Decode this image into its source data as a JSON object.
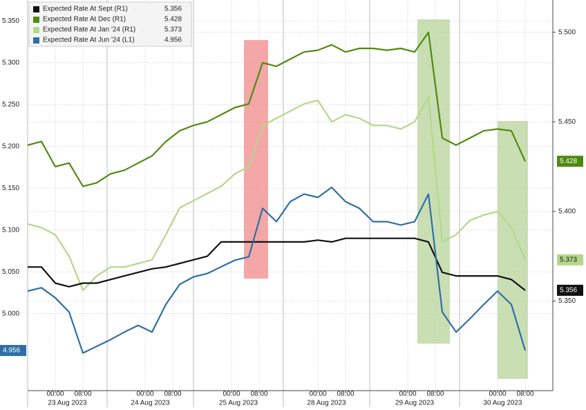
{
  "chart_data": {
    "type": "line",
    "x": [
      0,
      4,
      8,
      12,
      16,
      20,
      24,
      28,
      32,
      36,
      40,
      44,
      48,
      52,
      56,
      60,
      64,
      68,
      72,
      76,
      80,
      84,
      88,
      92,
      96,
      100,
      104,
      108,
      112,
      116,
      120,
      124,
      128,
      132,
      136,
      140,
      144
    ],
    "xlim": [
      0,
      152
    ],
    "xticks": [
      {
        "value": 8,
        "label": "00:00"
      },
      {
        "value": 16,
        "label": "08:00"
      },
      {
        "value": 34,
        "label": "00:00"
      },
      {
        "value": 42,
        "label": "08:00"
      },
      {
        "value": 59,
        "label": "00:00"
      },
      {
        "value": 67,
        "label": "08:00"
      },
      {
        "value": 84,
        "label": "00:00"
      },
      {
        "value": 92,
        "label": "08:00"
      },
      {
        "value": 110,
        "label": "00:00"
      },
      {
        "value": 118,
        "label": "08:00"
      },
      {
        "value": 136,
        "label": "00:00"
      },
      {
        "value": 144,
        "label": "08:00"
      }
    ],
    "x_groups": [
      {
        "label": "23 Aug 2023",
        "start": 0,
        "end": 23
      },
      {
        "label": "24 Aug 2023",
        "start": 23,
        "end": 48
      },
      {
        "label": "25 Aug 2023",
        "start": 48,
        "end": 74
      },
      {
        "label": "28 Aug 2023",
        "start": 74,
        "end": 99
      },
      {
        "label": "29 Aug 2023",
        "start": 99,
        "end": 125
      },
      {
        "label": "30 Aug 2023",
        "start": 125,
        "end": 150
      }
    ],
    "ylim": [
      4.908,
      5.375
    ],
    "yticks": [
      {
        "value": 5.35,
        "label": "5.350"
      },
      {
        "value": 5.3,
        "label": "5.300"
      },
      {
        "value": 5.25,
        "label": "5.250"
      },
      {
        "value": 5.2,
        "label": "5.200"
      },
      {
        "value": 5.15,
        "label": "5.150"
      },
      {
        "value": 5.1,
        "label": "5.100"
      },
      {
        "value": 5.05,
        "label": "5.050"
      },
      {
        "value": 5,
        "label": "5.000"
      }
    ],
    "y2lim": [
      5.3,
      5.518
    ],
    "y2ticks": [
      {
        "value": 5.5,
        "label": "5.500"
      },
      {
        "value": 5.45,
        "label": "5.450"
      },
      {
        "value": 5.4,
        "label": "5.400"
      },
      {
        "value": 5.35,
        "label": "5.350"
      }
    ],
    "grid": true,
    "series": [
      {
        "name": "Expected Rate At Sept (R1)",
        "color": "#111111",
        "axis": "y2",
        "values": [
          5.369,
          5.369,
          5.36,
          5.358,
          5.36,
          5.36,
          5.362,
          5.364,
          5.366,
          5.368,
          5.369,
          5.371,
          5.373,
          5.375,
          5.383,
          5.383,
          5.383,
          5.383,
          5.383,
          5.383,
          5.383,
          5.384,
          5.383,
          5.385,
          5.385,
          5.385,
          5.385,
          5.385,
          5.385,
          5.383,
          5.366,
          5.364,
          5.364,
          5.364,
          5.364,
          5.362,
          5.356
        ]
      },
      {
        "name": "Expected Rate At Dec (R1)",
        "color": "#4f8a10",
        "axis": "y2",
        "values": [
          5.437,
          5.439,
          5.425,
          5.427,
          5.414,
          5.416,
          5.421,
          5.423,
          5.427,
          5.431,
          5.439,
          5.445,
          5.448,
          5.45,
          5.454,
          5.458,
          5.46,
          5.483,
          5.481,
          5.485,
          5.489,
          5.49,
          5.493,
          5.489,
          5.491,
          5.491,
          5.49,
          5.491,
          5.489,
          5.5,
          5.441,
          5.437,
          5.441,
          5.445,
          5.446,
          5.445,
          5.428
        ]
      },
      {
        "name": "Expected Rate At Jan '24 (R1)",
        "color": "#b3d88a",
        "axis": "y2",
        "values": [
          5.393,
          5.391,
          5.387,
          5.375,
          5.356,
          5.364,
          5.369,
          5.369,
          5.371,
          5.373,
          5.387,
          5.402,
          5.406,
          5.41,
          5.414,
          5.421,
          5.425,
          5.448,
          5.452,
          5.456,
          5.46,
          5.462,
          5.45,
          5.454,
          5.452,
          5.448,
          5.448,
          5.446,
          5.45,
          5.464,
          5.383,
          5.387,
          5.395,
          5.398,
          5.4,
          5.391,
          5.373
        ]
      },
      {
        "name": "Expected Rate At Jun '24 (L1)",
        "color": "#2f6ea5",
        "values": [
          5.027,
          5.031,
          5.019,
          5.002,
          4.953,
          4.961,
          4.969,
          4.978,
          4.986,
          4.978,
          5.011,
          5.035,
          5.044,
          5.048,
          5.056,
          5.064,
          5.068,
          5.126,
          5.11,
          5.134,
          5.143,
          5.139,
          5.151,
          5.134,
          5.126,
          5.11,
          5.11,
          5.106,
          5.11,
          5.143,
          5.002,
          4.978,
          4.994,
          5.011,
          5.027,
          5.011,
          4.956
        ]
      }
    ]
  }
}
